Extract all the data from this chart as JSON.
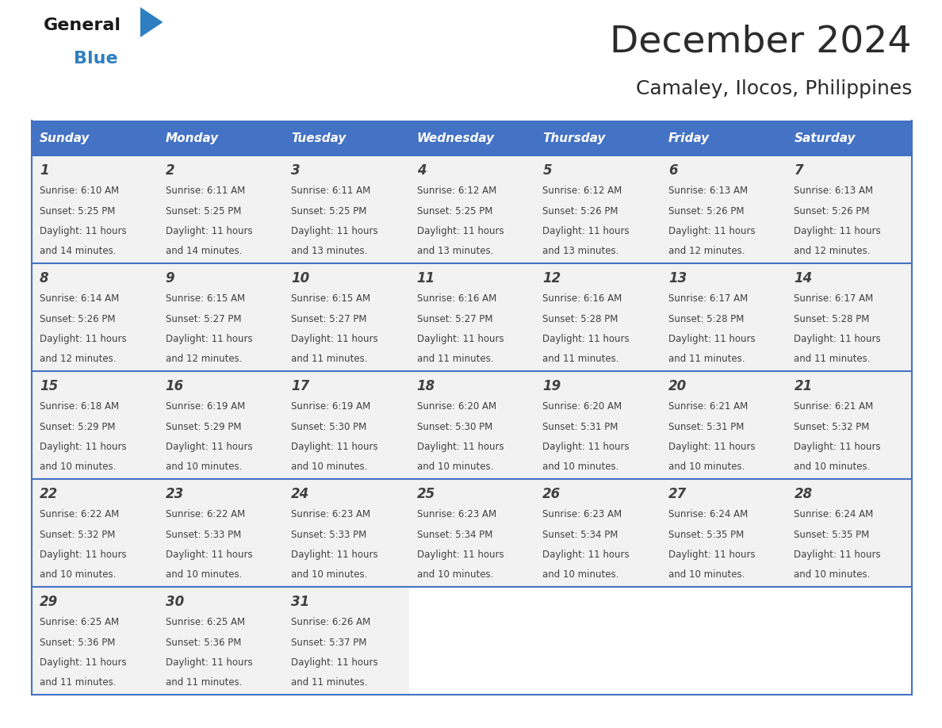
{
  "title": "December 2024",
  "subtitle": "Camaley, Ilocos, Philippines",
  "header_color": "#4472C4",
  "header_text_color": "#FFFFFF",
  "days_of_week": [
    "Sunday",
    "Monday",
    "Tuesday",
    "Wednesday",
    "Thursday",
    "Friday",
    "Saturday"
  ],
  "calendar_data": [
    [
      {
        "day": "1",
        "sunrise": "6:10 AM",
        "sunset": "5:25 PM",
        "daylight_line1": "Daylight: 11 hours",
        "daylight_line2": "and 14 minutes."
      },
      {
        "day": "2",
        "sunrise": "6:11 AM",
        "sunset": "5:25 PM",
        "daylight_line1": "Daylight: 11 hours",
        "daylight_line2": "and 14 minutes."
      },
      {
        "day": "3",
        "sunrise": "6:11 AM",
        "sunset": "5:25 PM",
        "daylight_line1": "Daylight: 11 hours",
        "daylight_line2": "and 13 minutes."
      },
      {
        "day": "4",
        "sunrise": "6:12 AM",
        "sunset": "5:25 PM",
        "daylight_line1": "Daylight: 11 hours",
        "daylight_line2": "and 13 minutes."
      },
      {
        "day": "5",
        "sunrise": "6:12 AM",
        "sunset": "5:26 PM",
        "daylight_line1": "Daylight: 11 hours",
        "daylight_line2": "and 13 minutes."
      },
      {
        "day": "6",
        "sunrise": "6:13 AM",
        "sunset": "5:26 PM",
        "daylight_line1": "Daylight: 11 hours",
        "daylight_line2": "and 12 minutes."
      },
      {
        "day": "7",
        "sunrise": "6:13 AM",
        "sunset": "5:26 PM",
        "daylight_line1": "Daylight: 11 hours",
        "daylight_line2": "and 12 minutes."
      }
    ],
    [
      {
        "day": "8",
        "sunrise": "6:14 AM",
        "sunset": "5:26 PM",
        "daylight_line1": "Daylight: 11 hours",
        "daylight_line2": "and 12 minutes."
      },
      {
        "day": "9",
        "sunrise": "6:15 AM",
        "sunset": "5:27 PM",
        "daylight_line1": "Daylight: 11 hours",
        "daylight_line2": "and 12 minutes."
      },
      {
        "day": "10",
        "sunrise": "6:15 AM",
        "sunset": "5:27 PM",
        "daylight_line1": "Daylight: 11 hours",
        "daylight_line2": "and 11 minutes."
      },
      {
        "day": "11",
        "sunrise": "6:16 AM",
        "sunset": "5:27 PM",
        "daylight_line1": "Daylight: 11 hours",
        "daylight_line2": "and 11 minutes."
      },
      {
        "day": "12",
        "sunrise": "6:16 AM",
        "sunset": "5:28 PM",
        "daylight_line1": "Daylight: 11 hours",
        "daylight_line2": "and 11 minutes."
      },
      {
        "day": "13",
        "sunrise": "6:17 AM",
        "sunset": "5:28 PM",
        "daylight_line1": "Daylight: 11 hours",
        "daylight_line2": "and 11 minutes."
      },
      {
        "day": "14",
        "sunrise": "6:17 AM",
        "sunset": "5:28 PM",
        "daylight_line1": "Daylight: 11 hours",
        "daylight_line2": "and 11 minutes."
      }
    ],
    [
      {
        "day": "15",
        "sunrise": "6:18 AM",
        "sunset": "5:29 PM",
        "daylight_line1": "Daylight: 11 hours",
        "daylight_line2": "and 10 minutes."
      },
      {
        "day": "16",
        "sunrise": "6:19 AM",
        "sunset": "5:29 PM",
        "daylight_line1": "Daylight: 11 hours",
        "daylight_line2": "and 10 minutes."
      },
      {
        "day": "17",
        "sunrise": "6:19 AM",
        "sunset": "5:30 PM",
        "daylight_line1": "Daylight: 11 hours",
        "daylight_line2": "and 10 minutes."
      },
      {
        "day": "18",
        "sunrise": "6:20 AM",
        "sunset": "5:30 PM",
        "daylight_line1": "Daylight: 11 hours",
        "daylight_line2": "and 10 minutes."
      },
      {
        "day": "19",
        "sunrise": "6:20 AM",
        "sunset": "5:31 PM",
        "daylight_line1": "Daylight: 11 hours",
        "daylight_line2": "and 10 minutes."
      },
      {
        "day": "20",
        "sunrise": "6:21 AM",
        "sunset": "5:31 PM",
        "daylight_line1": "Daylight: 11 hours",
        "daylight_line2": "and 10 minutes."
      },
      {
        "day": "21",
        "sunrise": "6:21 AM",
        "sunset": "5:32 PM",
        "daylight_line1": "Daylight: 11 hours",
        "daylight_line2": "and 10 minutes."
      }
    ],
    [
      {
        "day": "22",
        "sunrise": "6:22 AM",
        "sunset": "5:32 PM",
        "daylight_line1": "Daylight: 11 hours",
        "daylight_line2": "and 10 minutes."
      },
      {
        "day": "23",
        "sunrise": "6:22 AM",
        "sunset": "5:33 PM",
        "daylight_line1": "Daylight: 11 hours",
        "daylight_line2": "and 10 minutes."
      },
      {
        "day": "24",
        "sunrise": "6:23 AM",
        "sunset": "5:33 PM",
        "daylight_line1": "Daylight: 11 hours",
        "daylight_line2": "and 10 minutes."
      },
      {
        "day": "25",
        "sunrise": "6:23 AM",
        "sunset": "5:34 PM",
        "daylight_line1": "Daylight: 11 hours",
        "daylight_line2": "and 10 minutes."
      },
      {
        "day": "26",
        "sunrise": "6:23 AM",
        "sunset": "5:34 PM",
        "daylight_line1": "Daylight: 11 hours",
        "daylight_line2": "and 10 minutes."
      },
      {
        "day": "27",
        "sunrise": "6:24 AM",
        "sunset": "5:35 PM",
        "daylight_line1": "Daylight: 11 hours",
        "daylight_line2": "and 10 minutes."
      },
      {
        "day": "28",
        "sunrise": "6:24 AM",
        "sunset": "5:35 PM",
        "daylight_line1": "Daylight: 11 hours",
        "daylight_line2": "and 10 minutes."
      }
    ],
    [
      {
        "day": "29",
        "sunrise": "6:25 AM",
        "sunset": "5:36 PM",
        "daylight_line1": "Daylight: 11 hours",
        "daylight_line2": "and 11 minutes."
      },
      {
        "day": "30",
        "sunrise": "6:25 AM",
        "sunset": "5:36 PM",
        "daylight_line1": "Daylight: 11 hours",
        "daylight_line2": "and 11 minutes."
      },
      {
        "day": "31",
        "sunrise": "6:26 AM",
        "sunset": "5:37 PM",
        "daylight_line1": "Daylight: 11 hours",
        "daylight_line2": "and 11 minutes."
      },
      null,
      null,
      null,
      null
    ]
  ],
  "bg_color_cell": "#F2F2F2",
  "bg_color_empty": "#FFFFFF",
  "cell_border_color": "#4472C4",
  "text_color": "#404040",
  "logo_general_color": "#1A1A1A",
  "logo_blue_color": "#2E7FC1",
  "logo_triangle_color": "#2E7FC1"
}
